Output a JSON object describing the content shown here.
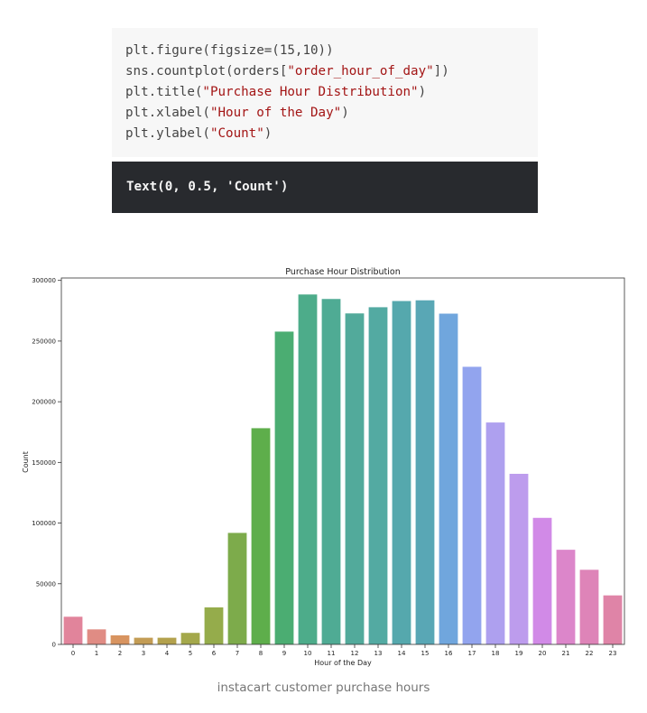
{
  "code": {
    "lines": [
      {
        "parts": [
          {
            "t": "plt.figure(figsize=(15,10))",
            "s": false
          }
        ]
      },
      {
        "parts": [
          {
            "t": "sns.countplot(orders[",
            "s": false
          },
          {
            "t": "\"order_hour_of_day\"",
            "s": true
          },
          {
            "t": "])",
            "s": false
          }
        ]
      },
      {
        "parts": [
          {
            "t": "plt.title(",
            "s": false
          },
          {
            "t": "\"Purchase Hour Distribution\"",
            "s": true
          },
          {
            "t": ")",
            "s": false
          }
        ]
      },
      {
        "parts": [
          {
            "t": "plt.xlabel(",
            "s": false
          },
          {
            "t": "\"Hour of the Day\"",
            "s": true
          },
          {
            "t": ")",
            "s": false
          }
        ]
      },
      {
        "parts": [
          {
            "t": "plt.ylabel(",
            "s": false
          },
          {
            "t": "\"Count\"",
            "s": true
          },
          {
            "t": ")",
            "s": false
          }
        ]
      }
    ]
  },
  "output": {
    "text": "Text(0, 0.5, 'Count')"
  },
  "caption": {
    "text": "instacart customer purchase hours"
  },
  "chart_data": {
    "type": "bar",
    "title": "Purchase Hour Distribution",
    "xlabel": "Hour of the Day",
    "ylabel": "Count",
    "categories": [
      "0",
      "1",
      "2",
      "3",
      "4",
      "5",
      "6",
      "7",
      "8",
      "9",
      "10",
      "11",
      "12",
      "13",
      "14",
      "15",
      "16",
      "17",
      "18",
      "19",
      "20",
      "21",
      "22",
      "23"
    ],
    "values": [
      22800,
      12400,
      7500,
      5500,
      5500,
      9500,
      30500,
      91900,
      178200,
      257800,
      288400,
      284700,
      272800,
      277900,
      283000,
      283600,
      272600,
      228800,
      182900,
      140600,
      104300,
      78000,
      61500,
      40400
    ],
    "colors": [
      "#e1849b",
      "#e08c84",
      "#d89460",
      "#c39c55",
      "#b3a14d",
      "#a4a84b",
      "#95ac4b",
      "#7dab4b",
      "#5eae4b",
      "#4bad72",
      "#4dac8a",
      "#4fab94",
      "#52aa9b",
      "#53aaa2",
      "#55a8ad",
      "#59a7b5",
      "#70a6dd",
      "#92a4ee",
      "#aea0ef",
      "#bd9ced",
      "#d18ae7",
      "#dc86ca",
      "#de84b8",
      "#df84a7"
    ],
    "yticks": [
      0,
      50000,
      100000,
      150000,
      200000,
      250000,
      300000
    ],
    "ylim": [
      0,
      302000
    ],
    "grid": false
  }
}
